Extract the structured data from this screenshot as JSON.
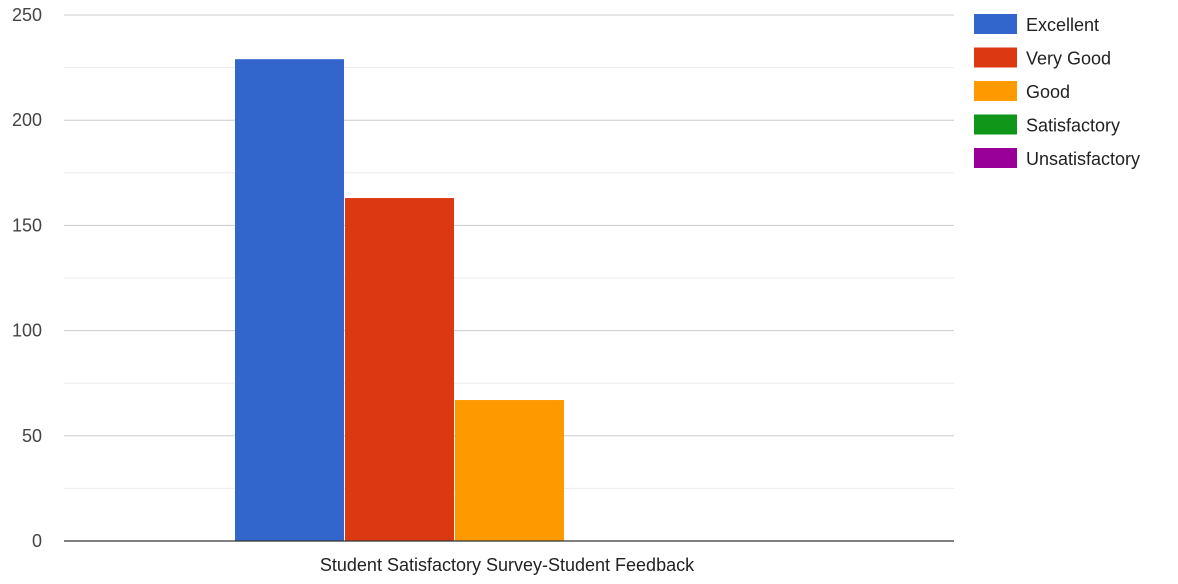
{
  "chart_data": {
    "type": "bar",
    "categories": [
      "Student Satisfactory Survey-Student Feedback"
    ],
    "series": [
      {
        "name": "Excellent",
        "values": [
          229
        ],
        "color": "#3366cc"
      },
      {
        "name": "Very Good",
        "values": [
          163
        ],
        "color": "#dc3912"
      },
      {
        "name": "Good",
        "values": [
          67
        ],
        "color": "#ff9900"
      },
      {
        "name": "Satisfactory",
        "values": [
          0
        ],
        "color": "#109618"
      },
      {
        "name": "Unsatisfactory",
        "values": [
          0
        ],
        "color": "#990099"
      }
    ],
    "yticks": [
      0,
      50,
      100,
      150,
      200,
      250
    ],
    "ylim": [
      0,
      250
    ],
    "grid": true,
    "legend_position": "right"
  }
}
